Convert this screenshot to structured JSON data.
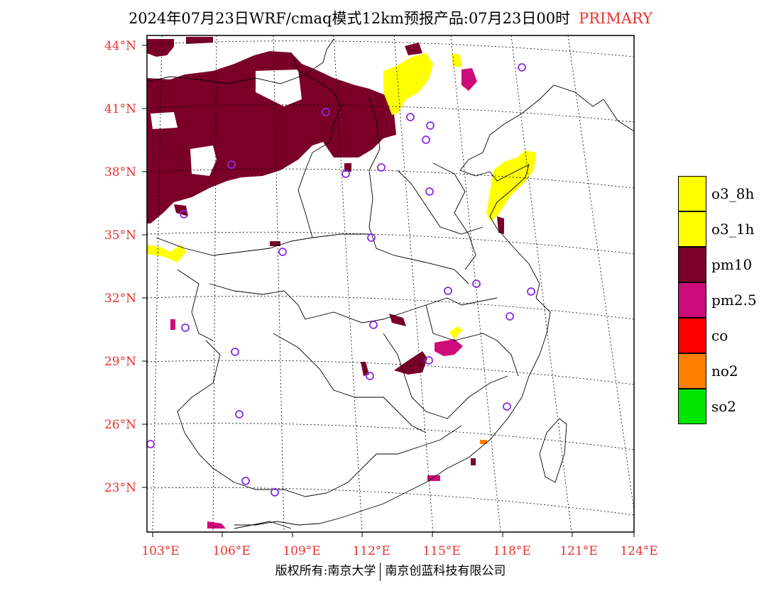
{
  "title": {
    "main": "2024年07月23日WRF/cmaq模式12km预报产品:07月23日00时",
    "tag": "PRIMARY"
  },
  "colors": {
    "tick_label": "#e8312f",
    "o3_8h": "#ffff00",
    "o3_1h": "#ffff00",
    "pm10": "#7a0028",
    "pm25": "#cc0a78",
    "co": "#ff0000",
    "no2": "#ff7f00",
    "so2": "#00e400",
    "station": "#8a2be2"
  },
  "lat_labels": [
    "44°N",
    "41°N",
    "38°N",
    "35°N",
    "32°N",
    "29°N",
    "26°N",
    "23°N"
  ],
  "lon_labels": [
    "103°E",
    "106°E",
    "109°E",
    "112°E",
    "115°E",
    "118°E",
    "121°E",
    "124°E"
  ],
  "legend": [
    {
      "label": "o3_8h",
      "color": "#ffff00"
    },
    {
      "label": "o3_1h",
      "color": "#ffff00"
    },
    {
      "label": "pm10",
      "color": "#7a0028"
    },
    {
      "label": "pm2.5",
      "color": "#cc0a78"
    },
    {
      "label": "co",
      "color": "#ff0000"
    },
    {
      "label": "no2",
      "color": "#ff7f00"
    },
    {
      "label": "so2",
      "color": "#00e400"
    }
  ],
  "copyright": {
    "left": "版权所有:南京大学",
    "right": "南京创蓝科技有限公司"
  }
}
